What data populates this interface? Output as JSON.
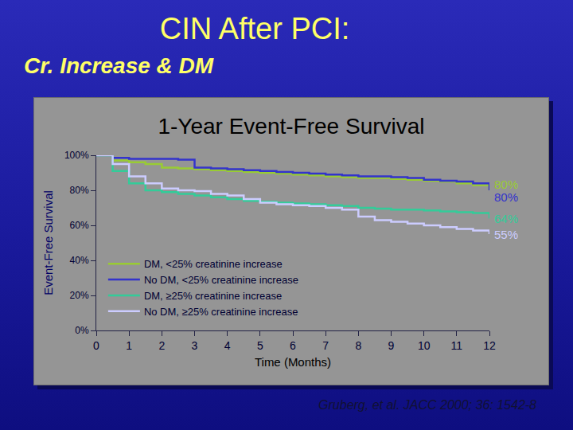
{
  "slide": {
    "title": "CIN After PCI:",
    "subtitle": "Cr. Increase & DM",
    "source": "Gruberg, et al. JACC 2000; 36: 1542-8"
  },
  "chart_data": {
    "type": "line",
    "title": "1-Year Event-Free Survival",
    "x_label": "Time (Months)",
    "y_label": "Event-Free Survival",
    "x": [
      0,
      0.5,
      1,
      1.5,
      2,
      2.5,
      3,
      3.5,
      4,
      4.5,
      5,
      5.5,
      6,
      6.5,
      7,
      7.5,
      8,
      8.5,
      9,
      9.5,
      10,
      10.5,
      11,
      11.5,
      12
    ],
    "series": [
      {
        "name": "DM, <25% creatinine increase",
        "color": "#99cc33",
        "line_style": "solid",
        "values": [
          100,
          97,
          96,
          95,
          93,
          92.5,
          92,
          91.5,
          91,
          90.5,
          90,
          89.5,
          89,
          88.5,
          88,
          87.5,
          87,
          87,
          86.5,
          86,
          85.5,
          85,
          84,
          83,
          80
        ],
        "value_labels": [
          null,
          null,
          null,
          null,
          null,
          null,
          null,
          null,
          null,
          null,
          null,
          null,
          null,
          null,
          null,
          null,
          null,
          null,
          null,
          null,
          null,
          null,
          null,
          null,
          "80%"
        ]
      },
      {
        "name": "No DM, <25% creatinine increase",
        "color": "#3333cc",
        "line_style": "solid",
        "values": [
          100,
          98.5,
          98,
          98,
          98,
          97.5,
          93,
          92.5,
          92,
          91.5,
          91,
          90.5,
          90,
          89.5,
          89,
          88.5,
          88,
          88,
          87.5,
          87,
          86,
          85.5,
          85,
          84,
          80
        ],
        "value_labels": [
          null,
          null,
          null,
          null,
          null,
          null,
          null,
          null,
          null,
          null,
          null,
          null,
          null,
          null,
          null,
          null,
          null,
          null,
          null,
          null,
          null,
          null,
          null,
          null,
          "80%"
        ]
      },
      {
        "name": "DM, ≥25% creatinine increase",
        "color": "#33cc99",
        "line_style": "solid",
        "values": [
          100,
          91,
          84,
          80,
          79,
          78,
          77,
          76,
          75,
          74,
          73.5,
          73,
          72.5,
          72,
          71.5,
          71,
          70,
          69.5,
          69,
          69,
          68.5,
          68,
          67.5,
          67,
          64
        ],
        "value_labels": [
          null,
          null,
          null,
          null,
          null,
          null,
          null,
          null,
          null,
          null,
          null,
          null,
          null,
          null,
          null,
          null,
          null,
          null,
          null,
          null,
          null,
          null,
          null,
          null,
          "64%"
        ]
      },
      {
        "name": "No DM, ≥25% creatinine increase",
        "color": "#ccccff",
        "line_style": "solid",
        "values": [
          100,
          95,
          88,
          84,
          81,
          80,
          79.5,
          78,
          77,
          75,
          73,
          72,
          71.5,
          71,
          70,
          69,
          65,
          63,
          62,
          61,
          60,
          59,
          58,
          57,
          55
        ],
        "value_labels": [
          null,
          null,
          null,
          null,
          null,
          null,
          null,
          null,
          null,
          null,
          null,
          null,
          null,
          null,
          null,
          null,
          null,
          null,
          null,
          null,
          null,
          null,
          null,
          null,
          "55%"
        ]
      }
    ],
    "xlim": [
      0,
      12
    ],
    "xticks": [
      0,
      1,
      2,
      3,
      4,
      5,
      6,
      7,
      8,
      9,
      10,
      11,
      12
    ],
    "ylim": [
      0,
      100
    ],
    "yticks": [
      {
        "value": 0,
        "label": "0%"
      },
      {
        "value": 20,
        "label": "20%"
      },
      {
        "value": 40,
        "label": "40%"
      },
      {
        "value": 60,
        "label": "60%"
      },
      {
        "value": 80,
        "label": "80%"
      },
      {
        "value": 100,
        "label": "100%"
      }
    ],
    "grid": false,
    "legend": "lower left",
    "data_labels": true
  }
}
